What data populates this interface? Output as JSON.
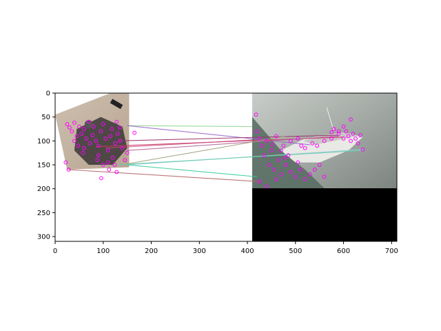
{
  "chart_data": {
    "type": "scatter",
    "title": "",
    "xlabel": "",
    "ylabel": "",
    "xlim": [
      0,
      711
    ],
    "ylim": [
      310,
      0
    ],
    "xticks": [
      0,
      100,
      200,
      300,
      400,
      500,
      600,
      700
    ],
    "yticks": [
      0,
      50,
      100,
      150,
      200,
      250,
      300
    ],
    "grid": false,
    "panels": [
      {
        "name": "left-image",
        "x_range": [
          0,
          154
        ],
        "y_range": [
          0,
          155
        ],
        "content": "camera photo with keypoints"
      },
      {
        "name": "right-image",
        "x_range": [
          410,
          711
        ],
        "y_range": [
          0,
          199
        ],
        "content": "boat on water photo with keypoints"
      },
      {
        "name": "padding",
        "x_range": [
          410,
          711
        ],
        "y_range": [
          199,
          310
        ],
        "content": "black fill"
      }
    ],
    "series": [
      {
        "name": "keypoints-left",
        "color": "#ff00ff",
        "points": [
          [
            25,
            65
          ],
          [
            30,
            72
          ],
          [
            35,
            80
          ],
          [
            40,
            62
          ],
          [
            45,
            90
          ],
          [
            50,
            70
          ],
          [
            55,
            85
          ],
          [
            60,
            75
          ],
          [
            65,
            95
          ],
          [
            70,
            60
          ],
          [
            72,
            105
          ],
          [
            78,
            88
          ],
          [
            80,
            70
          ],
          [
            85,
            100
          ],
          [
            90,
            110
          ],
          [
            95,
            80
          ],
          [
            100,
            65
          ],
          [
            105,
            95
          ],
          [
            110,
            120
          ],
          [
            115,
            90
          ],
          [
            118,
            75
          ],
          [
            120,
            135
          ],
          [
            125,
            105
          ],
          [
            128,
            60
          ],
          [
            130,
            85
          ],
          [
            135,
            100
          ],
          [
            140,
            115
          ],
          [
            145,
            140
          ],
          [
            150,
            125
          ],
          [
            40,
            100
          ],
          [
            60,
            115
          ],
          [
            90,
            130
          ],
          [
            100,
            150
          ],
          [
            110,
            145
          ],
          [
            128,
            165
          ],
          [
            135,
            72
          ],
          [
            165,
            83
          ],
          [
            96,
            178
          ],
          [
            28,
            160
          ],
          [
            22,
            145
          ],
          [
            48,
            110
          ],
          [
            58,
            125
          ],
          [
            88,
            140
          ],
          [
            112,
            160
          ],
          [
            124,
            150
          ]
        ]
      },
      {
        "name": "keypoints-right",
        "color": "#ff00ff",
        "points": [
          [
            418,
            45
          ],
          [
            420,
            80
          ],
          [
            425,
            95
          ],
          [
            430,
            110
          ],
          [
            435,
            130
          ],
          [
            440,
            100
          ],
          [
            445,
            150
          ],
          [
            450,
            120
          ],
          [
            455,
            160
          ],
          [
            460,
            90
          ],
          [
            465,
            140
          ],
          [
            470,
            170
          ],
          [
            475,
            110
          ],
          [
            480,
            150
          ],
          [
            485,
            130
          ],
          [
            490,
            165
          ],
          [
            500,
            175
          ],
          [
            505,
            145
          ],
          [
            510,
            160
          ],
          [
            520,
            180
          ],
          [
            530,
            170
          ],
          [
            540,
            160
          ],
          [
            550,
            150
          ],
          [
            560,
            175
          ],
          [
            545,
            110
          ],
          [
            560,
            100
          ],
          [
            575,
            95
          ],
          [
            580,
            75
          ],
          [
            590,
            85
          ],
          [
            600,
            95
          ],
          [
            605,
            80
          ],
          [
            610,
            90
          ],
          [
            615,
            100
          ],
          [
            620,
            85
          ],
          [
            625,
            95
          ],
          [
            630,
            105
          ],
          [
            640,
            118
          ],
          [
            635,
            88
          ],
          [
            615,
            55
          ],
          [
            600,
            70
          ],
          [
            590,
            80
          ],
          [
            575,
            82
          ],
          [
            520,
            115
          ],
          [
            535,
            105
          ],
          [
            425,
            185
          ],
          [
            440,
            195
          ],
          [
            460,
            180
          ],
          [
            470,
            120
          ],
          [
            490,
            100
          ],
          [
            505,
            95
          ],
          [
            512,
            110
          ],
          [
            478,
            135
          ],
          [
            452,
            108
          ]
        ]
      }
    ],
    "matches": [
      {
        "from": [
          154,
          68
        ],
        "to": [
          410,
          70
        ],
        "color": "#8fd68f"
      },
      {
        "from": [
          150,
          68
        ],
        "to": [
          530,
          108
        ],
        "color": "#9966cc"
      },
      {
        "from": [
          130,
          100
        ],
        "to": [
          590,
          88
        ],
        "color": "#993366"
      },
      {
        "from": [
          85,
          112
        ],
        "to": [
          600,
          92
        ],
        "color": "#cc3366"
      },
      {
        "from": [
          150,
          120
        ],
        "to": [
          590,
          90
        ],
        "color": "#b36699"
      },
      {
        "from": [
          150,
          148
        ],
        "to": [
          480,
          90
        ],
        "color": "#a0a080"
      },
      {
        "from": [
          150,
          150
        ],
        "to": [
          640,
          118
        ],
        "color": "#99ccdd"
      },
      {
        "from": [
          150,
          150
        ],
        "to": [
          420,
          175
        ],
        "color": "#33cc99"
      },
      {
        "from": [
          28,
          160
        ],
        "to": [
          425,
          185
        ],
        "color": "#b36666"
      },
      {
        "from": [
          105,
          115
        ],
        "to": [
          410,
          98
        ],
        "color": "#cc4477"
      },
      {
        "from": [
          125,
          150
        ],
        "to": [
          640,
          120
        ],
        "color": "#66ccaa"
      }
    ]
  }
}
